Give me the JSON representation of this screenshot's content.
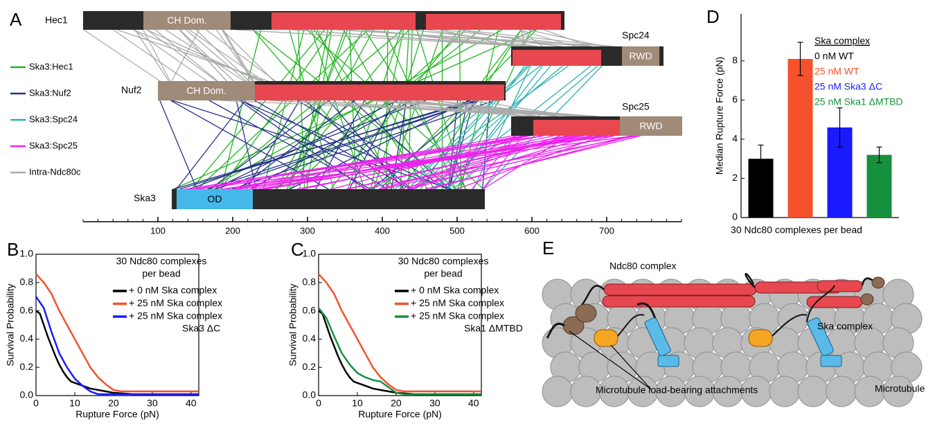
{
  "panel_labels": [
    "A",
    "B",
    "C",
    "D",
    "E"
  ],
  "crosslink_map": {
    "proteins": [
      {
        "name": "Hec1",
        "domain": "CH Dom."
      },
      {
        "name": "Spc24",
        "domain": "RWD"
      },
      {
        "name": "Nuf2",
        "domain": "CH Dom."
      },
      {
        "name": "Spc25",
        "domain": "RWD"
      },
      {
        "name": "Ska3",
        "domain": "OD"
      }
    ],
    "legend": [
      {
        "name": "Ska3:Hec1",
        "color": "#22b522"
      },
      {
        "name": "Ska3:Nuf2",
        "color": "#26308a"
      },
      {
        "name": "Ska3:Spc24",
        "color": "#2bb0b0"
      },
      {
        "name": "Ska3:Spc25",
        "color": "#ee22ee"
      },
      {
        "name": "Intra-Ndc80c",
        "color": "#aaaaaa"
      }
    ],
    "xlim": [
      0,
      800
    ],
    "xticks": [
      100,
      200,
      300,
      400,
      500,
      600,
      700
    ]
  },
  "chart_data": [
    {
      "type": "line",
      "xlabel": "Rupture Force (pN)",
      "ylabel": "Survival Probability",
      "xlim": [
        0,
        42
      ],
      "xticks": [
        0,
        10,
        20,
        30,
        40
      ],
      "ylim": [
        0,
        1.0
      ],
      "yticks": [
        {
          "value": 0,
          "label": "0.0"
        },
        0.2,
        0.4,
        0.6,
        0.8,
        {
          "value": 1,
          "label": "1.0"
        }
      ],
      "legend_title": [
        "30 Ndc80 complexes",
        "per bead"
      ],
      "series": [
        {
          "name": "+ 0 nM Ska complex",
          "color": "#000000",
          "x": [
            0,
            1,
            2,
            3,
            4,
            5,
            6,
            7,
            8,
            9,
            10,
            12,
            14,
            16,
            18,
            20,
            25,
            42
          ],
          "values": [
            0.6,
            0.58,
            0.5,
            0.42,
            0.35,
            0.28,
            0.22,
            0.17,
            0.13,
            0.1,
            0.09,
            0.07,
            0.05,
            0.04,
            0.03,
            0.02,
            0.01,
            0.01
          ]
        },
        {
          "name": "+ 25 nM Ska complex",
          "color": "#f4512c",
          "x": [
            0,
            2,
            4,
            6,
            8,
            10,
            12,
            14,
            16,
            18,
            20,
            22,
            25,
            42
          ],
          "values": [
            0.86,
            0.8,
            0.72,
            0.6,
            0.5,
            0.4,
            0.3,
            0.2,
            0.13,
            0.08,
            0.04,
            0.03,
            0.03,
            0.03
          ]
        },
        {
          "name": "+ 25 nM Ska complex",
          "name_cont": "Ska3 ΔC",
          "color": "#1a1aff",
          "x": [
            0,
            2,
            4,
            6,
            8,
            10,
            12,
            14,
            16,
            42
          ],
          "values": [
            0.7,
            0.62,
            0.45,
            0.3,
            0.2,
            0.12,
            0.07,
            0.03,
            0.01,
            0.01
          ]
        }
      ]
    },
    {
      "type": "line",
      "xlabel": "Rupture Force (pN)",
      "ylabel": "Survival Probability",
      "xlim": [
        0,
        42
      ],
      "xticks": [
        0,
        10,
        20,
        30,
        40
      ],
      "ylim": [
        0,
        1.0
      ],
      "yticks": [
        {
          "value": 0,
          "label": "0.0"
        },
        0.2,
        0.4,
        0.6,
        0.8,
        {
          "value": 1,
          "label": "1.0"
        }
      ],
      "legend_title": [
        "30 Ndc80 complexes",
        "per bead"
      ],
      "series": [
        {
          "name": "+ 0 nM Ska complex",
          "color": "#000000",
          "x": [
            0,
            1,
            2,
            3,
            4,
            5,
            6,
            7,
            8,
            9,
            10,
            12,
            14,
            16,
            18,
            20,
            25,
            42
          ],
          "values": [
            0.6,
            0.58,
            0.5,
            0.42,
            0.35,
            0.28,
            0.22,
            0.17,
            0.13,
            0.1,
            0.09,
            0.07,
            0.05,
            0.04,
            0.03,
            0.02,
            0.01,
            0.01
          ]
        },
        {
          "name": "+ 25 nM Ska complex",
          "color": "#f4512c",
          "x": [
            0,
            2,
            4,
            6,
            8,
            10,
            12,
            14,
            16,
            18,
            20,
            22,
            25,
            42
          ],
          "values": [
            0.86,
            0.8,
            0.72,
            0.6,
            0.5,
            0.4,
            0.3,
            0.2,
            0.13,
            0.08,
            0.04,
            0.03,
            0.03,
            0.03
          ]
        },
        {
          "name": "+ 25 nM Ska complex",
          "name_cont": "Ska1 ΔMTBD",
          "color": "#16913d",
          "x": [
            0,
            2,
            4,
            6,
            8,
            10,
            12,
            14,
            16,
            18,
            20,
            22,
            42
          ],
          "values": [
            0.62,
            0.55,
            0.42,
            0.3,
            0.22,
            0.16,
            0.13,
            0.11,
            0.1,
            0.06,
            0.02,
            0.01,
            0.01
          ]
        }
      ]
    },
    {
      "type": "bar",
      "xlabel": "30 Ndc80 complexes per bead",
      "ylabel": "Median Rupture Force (pN)",
      "ylim": [
        0,
        10.4
      ],
      "yticks": [
        0,
        2,
        4,
        6,
        8
      ],
      "legend_title": "Ska complex",
      "series": [
        {
          "name": "0 nM WT",
          "color": "#000000",
          "values": [
            3.0
          ],
          "errors": [
            0.7
          ]
        },
        {
          "name": "25 nM WT",
          "color": "#f4512c",
          "values": [
            8.1
          ],
          "errors": [
            0.85
          ]
        },
        {
          "name": "25 nM Ska3 ΔC",
          "color": "#1a1aff",
          "values": [
            4.6
          ],
          "errors": [
            1.0
          ]
        },
        {
          "name": "25 nM Ska1 ΔMTBD",
          "color": "#16913d",
          "values": [
            3.2
          ],
          "errors": [
            0.4
          ]
        }
      ]
    }
  ],
  "illustration": {
    "labels": [
      "Ndc80 complex",
      "Ska complex",
      "Microtubule",
      "Microtubule load-bearing attachments"
    ]
  }
}
